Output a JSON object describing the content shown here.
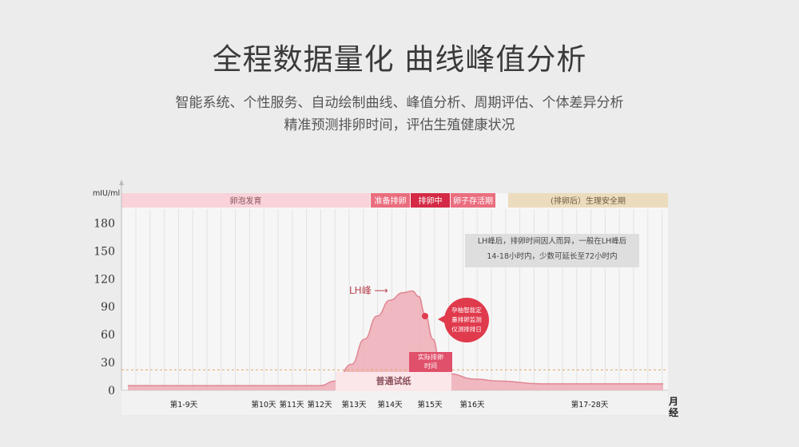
{
  "header": {
    "title": "全程数据量化  曲线峰值分析",
    "subtitle_line1": "智能系统、个性服务、自动绘制曲线、峰值分析、周期评估、个体差异分析",
    "subtitle_line2": "精准预测排卵时间，评估生殖健康状况"
  },
  "chart_data": {
    "type": "area",
    "ylabel": "mIU/ml",
    "xlabel": "月经",
    "ylim": [
      0,
      195
    ],
    "y_ticks": [
      0,
      30,
      60,
      90,
      120,
      150,
      180
    ],
    "x_ticks": [
      "第1-9天",
      "第10天",
      "第11天",
      "第12天",
      "第13天",
      "第14天",
      "第15天",
      "第16天",
      "第17-28天"
    ],
    "series": [
      {
        "values": [
          [
            1,
            5
          ],
          [
            9,
            5
          ],
          [
            10,
            5
          ],
          [
            11,
            5
          ],
          [
            12,
            5
          ],
          [
            12.5,
            10
          ],
          [
            13,
            28
          ],
          [
            13.4,
            55
          ],
          [
            13.8,
            80
          ],
          [
            14.2,
            97
          ],
          [
            14.6,
            105
          ],
          [
            14.9,
            107
          ],
          [
            15.1,
            101
          ],
          [
            15.3,
            82
          ],
          [
            15.55,
            55
          ],
          [
            15.75,
            33
          ],
          [
            16,
            18
          ],
          [
            16.6,
            12
          ],
          [
            17.2,
            10
          ],
          [
            20,
            7
          ],
          [
            28,
            7
          ]
        ]
      }
    ],
    "threshold": 22,
    "phases": [
      {
        "label": "卵泡发育",
        "color": "#f9d3d9",
        "text_color": "#8a4f59"
      },
      {
        "label": "准备排卵",
        "color": "#ea6e7e",
        "text_color": "#ffffff"
      },
      {
        "label": "排卵中",
        "color": "#d42a45",
        "text_color": "#ffffff"
      },
      {
        "label": "卵子存活期",
        "color": "#ea6e7e",
        "text_color": "#ffffff"
      },
      {
        "label": "(排卵后）生理安全期",
        "color": "#ecdcbe",
        "text_color": "#6f5a3c"
      }
    ],
    "annotations": {
      "lh_peak": "LH峰 ⟶",
      "note_line1": "LH峰后，排卵时间因人而异，一般在LH峰后",
      "note_line2": "14-18小时内，少数可延长至72小时内",
      "bubble": [
        "孕柚智能定",
        "量排卵监测",
        "仪测排排日"
      ],
      "actual_ovulation": [
        "实际排卵",
        "时间"
      ],
      "test_strip": "普通试纸"
    },
    "grid": true
  },
  "colors": {
    "curve_fill": "#efadb6",
    "curve_line": "#e08793",
    "threshold_line": "#e0a865",
    "accent": "#e03a4d"
  }
}
